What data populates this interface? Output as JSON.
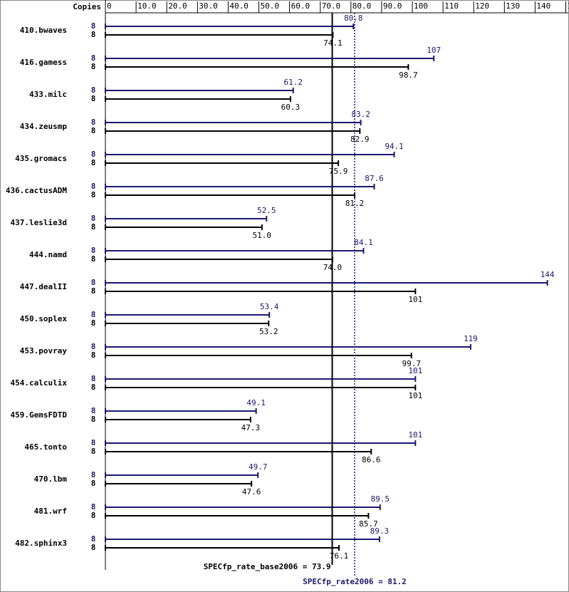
{
  "chart_data": {
    "type": "bar",
    "orientation": "horizontal",
    "copies_label": "Copies",
    "categories": [
      "410.bwaves",
      "416.gamess",
      "433.milc",
      "434.zeusmp",
      "435.gromacs",
      "436.cactusADM",
      "437.leslie3d",
      "444.namd",
      "447.dealII",
      "450.soplex",
      "453.povray",
      "454.calculix",
      "459.GemsFDTD",
      "465.tonto",
      "470.lbm",
      "481.wrf",
      "482.sphinx3"
    ],
    "series": [
      {
        "name": "peak",
        "color": "#191970",
        "values": [
          80.8,
          107,
          61.2,
          83.2,
          94.1,
          87.6,
          52.5,
          84.1,
          144,
          53.4,
          119,
          101,
          49.1,
          101,
          49.7,
          89.5,
          89.3
        ],
        "copies": [
          8,
          8,
          8,
          8,
          8,
          8,
          8,
          8,
          8,
          8,
          8,
          8,
          8,
          8,
          8,
          8,
          8
        ]
      },
      {
        "name": "base",
        "color": "#000000",
        "values": [
          74.1,
          98.7,
          60.3,
          82.9,
          75.9,
          81.2,
          51,
          74,
          101,
          53.2,
          99.7,
          101,
          47.3,
          86.6,
          47.6,
          85.7,
          76.1
        ],
        "value_labels": [
          "74.1",
          "98.7",
          "60.3",
          "82.9",
          "75.9",
          "81.2",
          "51.0",
          "74.0",
          "101",
          "53.2",
          "99.7",
          "101",
          "47.3",
          "86.6",
          "47.6",
          "85.7",
          "76.1"
        ],
        "copies": [
          8,
          8,
          8,
          8,
          8,
          8,
          8,
          8,
          8,
          8,
          8,
          8,
          8,
          8,
          8,
          8,
          8
        ]
      }
    ],
    "xlim": [
      0,
      150
    ],
    "xticks": [
      0,
      {
        "value": 10,
        "label": "10.0"
      },
      {
        "value": 20,
        "label": "20.0"
      },
      {
        "value": 30,
        "label": "30.0"
      },
      {
        "value": 40,
        "label": "40.0"
      },
      {
        "value": 50,
        "label": "50.0"
      },
      {
        "value": 60,
        "label": "60.0"
      },
      {
        "value": 70,
        "label": "70.0"
      },
      {
        "value": 80,
        "label": "80.0"
      },
      {
        "value": 90,
        "label": "90.0"
      },
      100,
      110,
      120,
      130,
      140,
      150
    ],
    "reference_lines": [
      {
        "label": "SPECfp_rate_base2006 = 73.9",
        "value": 73.9,
        "color": "#000000",
        "style": "solid"
      },
      {
        "label": "SPECfp_rate2006 = 81.2",
        "value": 81.2,
        "color": "#191970",
        "style": "dotted"
      }
    ]
  }
}
